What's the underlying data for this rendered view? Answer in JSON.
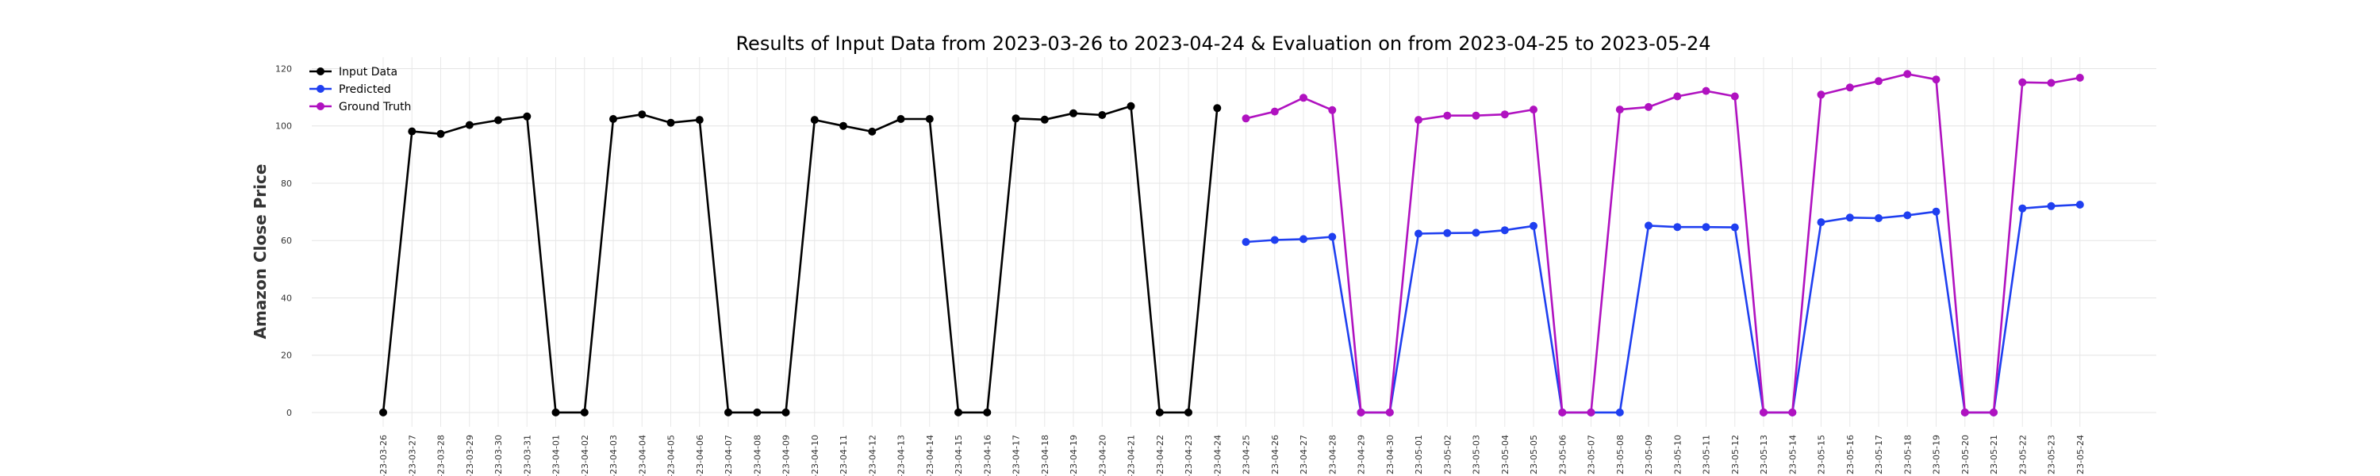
{
  "chart_data": {
    "type": "line",
    "title": "Results of Input Data from 2023-03-26 to 2023-04-24 & Evaluation on from 2023-04-25 to 2023-05-24",
    "xlabel": "",
    "ylabel": "Amazon Close Price",
    "ylim": [
      -5,
      124
    ],
    "yticks": [
      0,
      20,
      40,
      60,
      80,
      100,
      120
    ],
    "grid": true,
    "legend_position": "top-left",
    "categories": [
      "2023-03-26",
      "2023-03-27",
      "2023-03-28",
      "2023-03-29",
      "2023-03-30",
      "2023-03-31",
      "2023-04-01",
      "2023-04-02",
      "2023-04-03",
      "2023-04-04",
      "2023-04-05",
      "2023-04-06",
      "2023-04-07",
      "2023-04-08",
      "2023-04-09",
      "2023-04-10",
      "2023-04-11",
      "2023-04-12",
      "2023-04-13",
      "2023-04-14",
      "2023-04-15",
      "2023-04-16",
      "2023-04-17",
      "2023-04-18",
      "2023-04-19",
      "2023-04-20",
      "2023-04-21",
      "2023-04-22",
      "2023-04-23",
      "2023-04-24",
      "2023-04-25",
      "2023-04-26",
      "2023-04-27",
      "2023-04-28",
      "2023-04-29",
      "2023-04-30",
      "2023-05-01",
      "2023-05-02",
      "2023-05-03",
      "2023-05-04",
      "2023-05-05",
      "2023-05-06",
      "2023-05-07",
      "2023-05-08",
      "2023-05-09",
      "2023-05-10",
      "2023-05-11",
      "2023-05-12",
      "2023-05-13",
      "2023-05-14",
      "2023-05-15",
      "2023-05-16",
      "2023-05-17",
      "2023-05-18",
      "2023-05-19",
      "2023-05-20",
      "2023-05-21",
      "2023-05-22",
      "2023-05-23",
      "2023-05-24"
    ],
    "tick_labels": [
      "-23-03-26",
      "-23-03-27",
      "-23-03-28",
      "-23-03-29",
      "-23-03-30",
      "-23-03-31",
      "-23-04-01",
      "-23-04-02",
      "-23-04-03",
      "-23-04-04",
      "-23-04-05",
      "-23-04-06",
      "-23-04-07",
      "-23-04-08",
      "-23-04-09",
      "-23-04-10",
      "-23-04-11",
      "-23-04-12",
      "-23-04-13",
      "-23-04-14",
      "-23-04-15",
      "-23-04-16",
      "-23-04-17",
      "-23-04-18",
      "-23-04-19",
      "-23-04-20",
      "-23-04-21",
      "-23-04-22",
      "-23-04-23",
      "-23-04-24",
      "23-04-25",
      "23-04-26",
      "23-04-27",
      "23-04-28",
      "23-04-29",
      "23-04-30",
      "23-05-01",
      "23-05-02",
      "23-05-03",
      "23-05-04",
      "23-05-05",
      "23-05-06",
      "23-05-07",
      "23-05-08",
      "23-05-09",
      "23-05-10",
      "23-05-11",
      "23-05-12",
      "23-05-13",
      "23-05-14",
      "23-05-15",
      "23-05-16",
      "23-05-17",
      "23-05-18",
      "23-05-19",
      "23-05-20",
      "23-05-21",
      "23-05-22",
      "23-05-23",
      "23-05-24"
    ],
    "series": [
      {
        "name": "Input Data",
        "color": "#000000",
        "x": [
          "2023-03-26",
          "2023-03-27",
          "2023-03-28",
          "2023-03-29",
          "2023-03-30",
          "2023-03-31",
          "2023-04-01",
          "2023-04-02",
          "2023-04-03",
          "2023-04-04",
          "2023-04-05",
          "2023-04-06",
          "2023-04-07",
          "2023-04-08",
          "2023-04-09",
          "2023-04-10",
          "2023-04-11",
          "2023-04-12",
          "2023-04-13",
          "2023-04-14",
          "2023-04-15",
          "2023-04-16",
          "2023-04-17",
          "2023-04-18",
          "2023-04-19",
          "2023-04-20",
          "2023-04-21",
          "2023-04-22",
          "2023-04-23",
          "2023-04-24"
        ],
        "values": [
          0,
          98.1,
          97.2,
          100.3,
          102.0,
          103.3,
          0,
          0,
          102.4,
          104.0,
          101.1,
          102.1,
          0,
          0,
          0,
          102.1,
          100.0,
          98.0,
          102.4,
          102.4,
          0,
          0,
          102.6,
          102.2,
          104.4,
          103.8,
          106.9,
          0,
          0,
          106.2
        ]
      },
      {
        "name": "Predicted",
        "color": "#1f3ff0",
        "x": [
          "2023-04-25",
          "2023-04-26",
          "2023-04-27",
          "2023-04-28",
          "2023-04-29",
          "2023-04-30",
          "2023-05-01",
          "2023-05-02",
          "2023-05-03",
          "2023-05-04",
          "2023-05-05",
          "2023-05-06",
          "2023-05-07",
          "2023-05-08",
          "2023-05-09",
          "2023-05-10",
          "2023-05-11",
          "2023-05-12",
          "2023-05-13",
          "2023-05-14",
          "2023-05-15",
          "2023-05-16",
          "2023-05-17",
          "2023-05-18",
          "2023-05-19",
          "2023-05-20",
          "2023-05-21",
          "2023-05-22",
          "2023-05-23",
          "2023-05-24"
        ],
        "values": [
          59.5,
          60.2,
          60.5,
          61.3,
          0,
          0,
          62.4,
          62.6,
          62.7,
          63.6,
          65.1,
          0,
          0,
          0,
          65.2,
          64.7,
          64.7,
          64.6,
          0,
          0,
          66.4,
          68.0,
          67.8,
          68.8,
          70.1,
          0,
          0,
          71.2,
          72.0,
          72.5
        ]
      },
      {
        "name": "Ground Truth",
        "color": "#b012c0",
        "x": [
          "2023-04-25",
          "2023-04-26",
          "2023-04-27",
          "2023-04-28",
          "2023-04-29",
          "2023-04-30",
          "2023-05-01",
          "2023-05-02",
          "2023-05-03",
          "2023-05-04",
          "2023-05-05",
          "2023-05-06",
          "2023-05-07",
          "2023-05-08",
          "2023-05-09",
          "2023-05-10",
          "2023-05-11",
          "2023-05-12",
          "2023-05-13",
          "2023-05-14",
          "2023-05-15",
          "2023-05-16",
          "2023-05-17",
          "2023-05-18",
          "2023-05-19",
          "2023-05-20",
          "2023-05-21",
          "2023-05-22",
          "2023-05-23",
          "2023-05-24"
        ],
        "values": [
          102.6,
          105.0,
          109.8,
          105.5,
          0,
          0,
          102.1,
          103.6,
          103.6,
          104.0,
          105.7,
          0,
          0,
          105.7,
          106.6,
          110.3,
          112.2,
          110.3,
          0,
          0,
          110.9,
          113.4,
          115.6,
          118.1,
          116.2,
          0,
          0,
          115.2,
          115.0,
          116.8
        ]
      }
    ]
  }
}
